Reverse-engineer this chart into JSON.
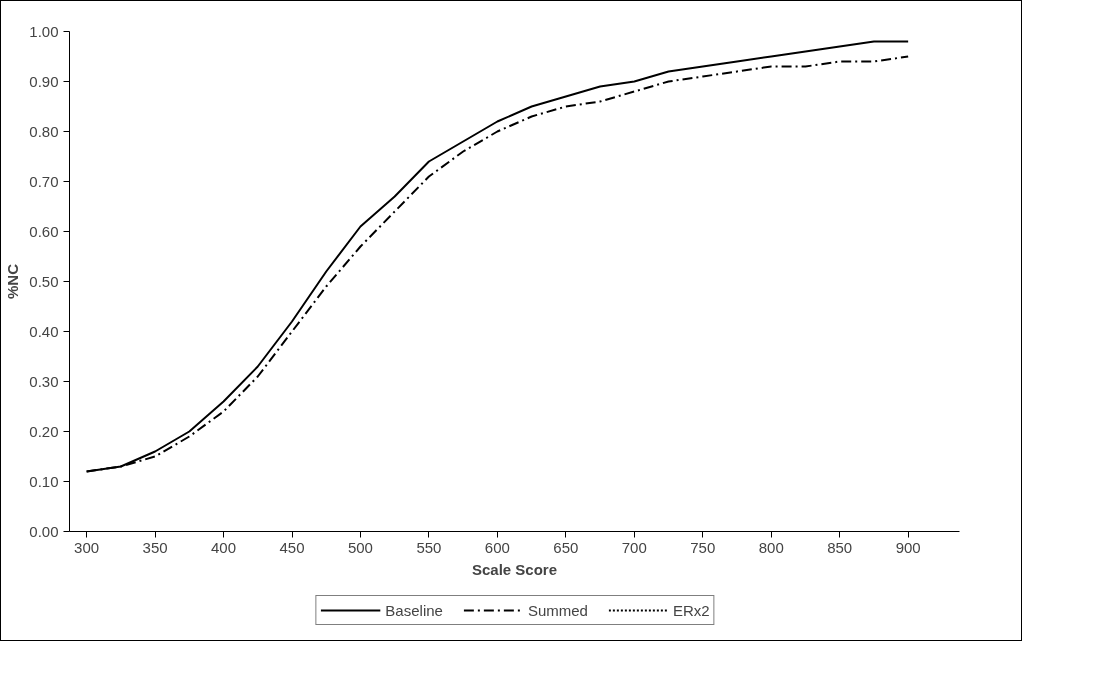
{
  "chart_data": {
    "type": "line",
    "xlabel": "Scale Score",
    "ylabel": "%NC",
    "x": [
      300,
      325,
      350,
      375,
      400,
      425,
      450,
      475,
      500,
      525,
      550,
      575,
      600,
      625,
      650,
      675,
      700,
      725,
      750,
      775,
      800,
      825,
      850,
      875,
      900
    ],
    "xlim": [
      287.5,
      937.5
    ],
    "xticks": [
      300,
      350,
      400,
      450,
      500,
      550,
      600,
      650,
      700,
      750,
      800,
      850,
      900
    ],
    "ylim": [
      0,
      1
    ],
    "yticks": [
      {
        "value": 0,
        "label": "0.00"
      },
      {
        "value": 0.1,
        "label": "0.10"
      },
      {
        "value": 0.2,
        "label": "0.20"
      },
      {
        "value": 0.3,
        "label": "0.30"
      },
      {
        "value": 0.4,
        "label": "0.40"
      },
      {
        "value": 0.5,
        "label": "0.50"
      },
      {
        "value": 0.6,
        "label": "0.60"
      },
      {
        "value": 0.7,
        "label": "0.70"
      },
      {
        "value": 0.8,
        "label": "0.80"
      },
      {
        "value": 0.9,
        "label": "0.90"
      },
      {
        "value": 1,
        "label": "1.00"
      }
    ],
    "legend": "bottom",
    "marker": "none",
    "series": [
      {
        "name": "Baseline",
        "color": "#000000",
        "line_style": "solid",
        "values": [
          0.12,
          0.13,
          0.16,
          0.2,
          0.26,
          0.33,
          0.42,
          0.52,
          0.61,
          0.67,
          0.74,
          0.78,
          0.82,
          0.85,
          0.87,
          0.89,
          0.9,
          0.92,
          0.93,
          0.94,
          0.95,
          0.96,
          0.97,
          0.98,
          0.98
        ]
      },
      {
        "name": "Summed",
        "color": "#000000",
        "line_style": "dashdot",
        "values": [
          0.12,
          0.13,
          0.15,
          0.19,
          0.24,
          0.31,
          0.4,
          0.49,
          0.57,
          0.64,
          0.71,
          0.76,
          0.8,
          0.83,
          0.85,
          0.86,
          0.88,
          0.9,
          0.91,
          0.92,
          0.93,
          0.93,
          0.94,
          0.94,
          0.95
        ]
      },
      {
        "name": "ERx2",
        "color": "#000000",
        "line_style": "dotted",
        "values": [
          null,
          null,
          null,
          null,
          null,
          null,
          null,
          null,
          null,
          null,
          null,
          null,
          null,
          null,
          null,
          null,
          null,
          null,
          null,
          null,
          null,
          null,
          null,
          null,
          null
        ]
      }
    ]
  }
}
